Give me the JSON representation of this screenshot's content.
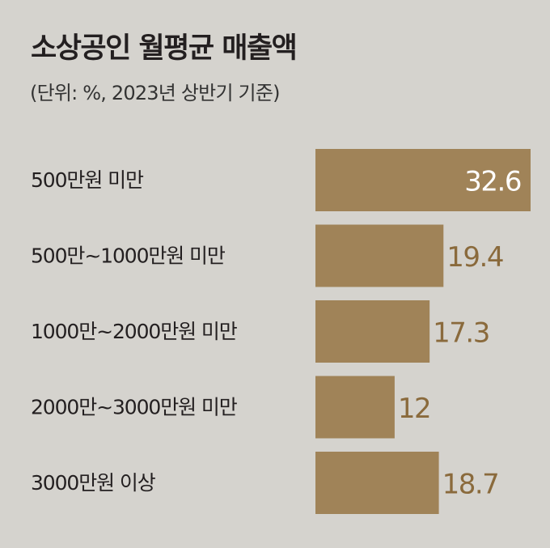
{
  "chart_data": {
    "type": "bar",
    "orientation": "horizontal",
    "title": "소상공인 월평균 매출액",
    "subtitle": "(단위: %, 2023년 상반기 기준)",
    "categories": [
      "500만원 미만",
      "500만~1000만원 미만",
      "1000만~2000만원 미만",
      "2000만~3000만원 미만",
      "3000만원 이상"
    ],
    "values": [
      32.6,
      19.4,
      17.3,
      12,
      18.7
    ],
    "value_labels": [
      "32.6",
      "19.4",
      "17.3",
      "12",
      "18.7"
    ],
    "xlim": [
      0,
      32.6
    ],
    "grid": false,
    "legend": "none",
    "colors": {
      "background": "#d5d3ce",
      "bar": "#a08358",
      "label_outside": "#8a6a3c",
      "label_inside": "#ffffff",
      "text": "#231f20"
    }
  }
}
